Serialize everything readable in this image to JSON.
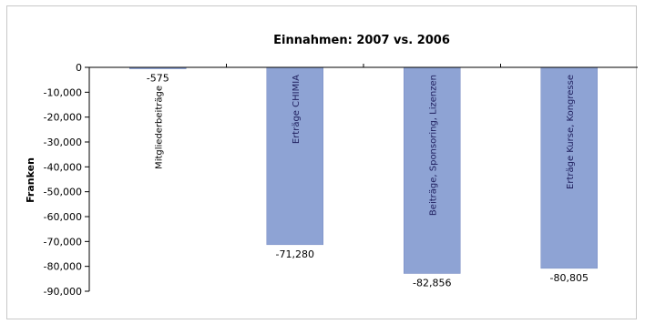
{
  "chart_data": {
    "type": "bar",
    "title": "Einnahmen: 2007 vs. 2006",
    "ylabel": "Franken",
    "xlabel": "",
    "categories": [
      "Mitgliederbeiträge",
      "Erträge CHIMIA",
      "Beiträge, Sponsoring, Lizenzen",
      "Erträge Kurse, Kongresse"
    ],
    "values": [
      -575,
      -71280,
      -82856,
      -80805
    ],
    "value_labels": [
      "-575",
      "-71,280",
      "-82,856",
      "-80,805"
    ],
    "ylim": [
      -90000,
      0
    ],
    "yticks": [
      0,
      -10000,
      -20000,
      -30000,
      -40000,
      -50000,
      -60000,
      -70000,
      -80000,
      -90000
    ],
    "ytick_labels": [
      "0",
      "-10,000",
      "-20,000",
      "-30,000",
      "-40,000",
      "-50,000",
      "-60,000",
      "-70,000",
      "-80,000",
      "-90,000"
    ],
    "grid": false,
    "legend": "none",
    "colors": {
      "bar": "#8ea3d4",
      "bar_edge": "#7589c2",
      "axis": "#000000"
    }
  }
}
